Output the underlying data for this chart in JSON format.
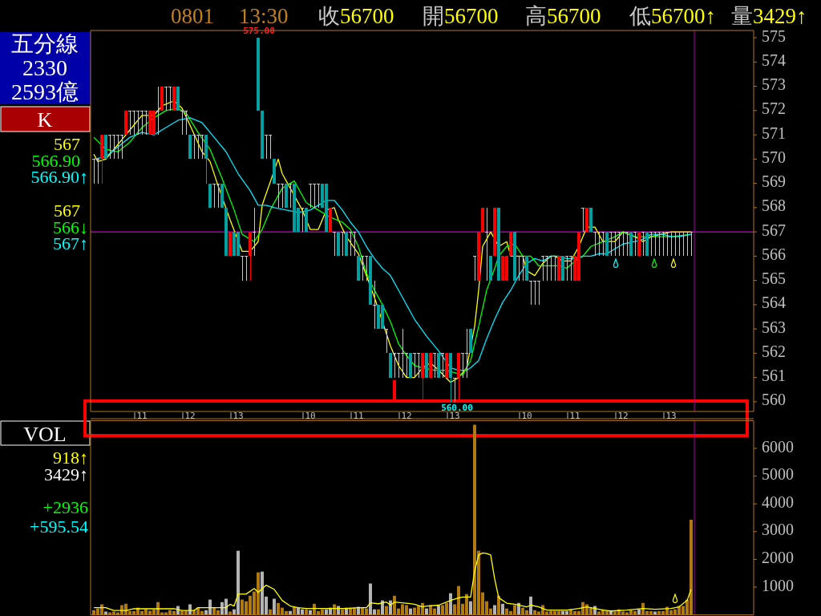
{
  "chart_data": [
    {
      "type": "candlestick",
      "categories": [
        null,
        null,
        null,
        null,
        null,
        null,
        null,
        null,
        null,
        null,
        null,
        null,
        "11",
        null,
        null,
        null,
        null,
        null,
        null,
        null,
        null,
        null,
        null,
        null,
        "12",
        null,
        null,
        null,
        null,
        null,
        null,
        null,
        null,
        null,
        null,
        null,
        "13",
        null,
        null,
        null,
        null,
        null,
        null,
        null,
        null,
        null,
        null,
        null,
        null,
        null,
        null,
        null,
        null,
        null,
        "10",
        null,
        null,
        null,
        null,
        null,
        null,
        null,
        null,
        null,
        null,
        null,
        "11",
        null,
        null,
        null,
        null,
        null,
        null,
        null,
        null,
        null,
        null,
        null,
        "12",
        null,
        null,
        null,
        null,
        null,
        null,
        null,
        null,
        null,
        null,
        null,
        "13",
        null,
        null,
        null,
        null,
        null,
        null,
        null,
        null,
        null,
        null,
        null,
        null,
        null,
        null,
        null,
        null,
        null,
        "10",
        null,
        null,
        null,
        null,
        null,
        null,
        null,
        null,
        null,
        null,
        null,
        "11",
        null,
        null,
        null,
        null,
        null,
        null,
        null,
        null,
        null,
        null,
        null,
        "12",
        null,
        null,
        null,
        null,
        null,
        null,
        null,
        null,
        null,
        null,
        null,
        "13",
        null,
        null,
        null,
        null,
        null
      ],
      "ohlc": [
        [
          570,
          570,
          569,
          570
        ],
        [
          570,
          570,
          569,
          570
        ],
        [
          570,
          571,
          569,
          571
        ],
        [
          571,
          571,
          570,
          570
        ],
        [
          571,
          571,
          570,
          571
        ],
        [
          571,
          571,
          570,
          571
        ],
        [
          571,
          571,
          570,
          571
        ],
        [
          571,
          571,
          570,
          571
        ],
        [
          571,
          572,
          571,
          572
        ],
        [
          572,
          572,
          571,
          572
        ],
        [
          572,
          572,
          571,
          572
        ],
        [
          572,
          572,
          571,
          572
        ],
        [
          572,
          572,
          571,
          572
        ],
        [
          572,
          572,
          571,
          572
        ],
        [
          571,
          572,
          571,
          572
        ],
        [
          571,
          572,
          571,
          572
        ],
        [
          572,
          573,
          571,
          572
        ],
        [
          572,
          573,
          572,
          573
        ],
        [
          573,
          573,
          572,
          573
        ],
        [
          573,
          573,
          572,
          573
        ],
        [
          572,
          573,
          572,
          573
        ],
        [
          573,
          573,
          572,
          572
        ],
        [
          572,
          572,
          571,
          572
        ],
        [
          572,
          572,
          571,
          572
        ],
        [
          571,
          571,
          570,
          570
        ],
        [
          571,
          571,
          570,
          571
        ],
        [
          571,
          571,
          570,
          571
        ],
        [
          571,
          571,
          570,
          571
        ],
        [
          571,
          571,
          569,
          570
        ],
        [
          569,
          569,
          568,
          568
        ],
        [
          569,
          569,
          568,
          569
        ],
        [
          569,
          569,
          568,
          569
        ],
        [
          569,
          569,
          568,
          568
        ],
        [
          568,
          568,
          566,
          566
        ],
        [
          566,
          567,
          566,
          567
        ],
        [
          567,
          567,
          566,
          566
        ],
        [
          567,
          567,
          566,
          566
        ],
        [
          566,
          566,
          565,
          566
        ],
        [
          566,
          566,
          565,
          566
        ],
        [
          566,
          567,
          565,
          567
        ],
        [
          567,
          568,
          566,
          567
        ],
        [
          575,
          575,
          572,
          572
        ],
        [
          572,
          572,
          570,
          570
        ],
        [
          571,
          571,
          570,
          571
        ],
        [
          571,
          571,
          570,
          571
        ],
        [
          570,
          570,
          569,
          569
        ],
        [
          569,
          569,
          568,
          569
        ],
        [
          569,
          569,
          568,
          569
        ],
        [
          569,
          569,
          568,
          568
        ],
        [
          569,
          569,
          568,
          569
        ],
        [
          569,
          569,
          567,
          567
        ],
        [
          568,
          568,
          567,
          567
        ],
        [
          568,
          568,
          567,
          568
        ],
        [
          568,
          568,
          567,
          567
        ],
        [
          569,
          569,
          568,
          569
        ],
        [
          569,
          569,
          568,
          569
        ],
        [
          569,
          569,
          568,
          569
        ],
        [
          569,
          569,
          568,
          568
        ],
        [
          569,
          569,
          567,
          567
        ],
        [
          567,
          568,
          567,
          568
        ],
        [
          567,
          567,
          566,
          567
        ],
        [
          567,
          567,
          566,
          566
        ],
        [
          567,
          567,
          566,
          567
        ],
        [
          567,
          567,
          566,
          566
        ],
        [
          567,
          567,
          566,
          567
        ],
        [
          567,
          567,
          566,
          567
        ],
        [
          566,
          566,
          565,
          565
        ],
        [
          566,
          566,
          565,
          566
        ],
        [
          566,
          566,
          565,
          566
        ],
        [
          566,
          566,
          564,
          564
        ],
        [
          564,
          565,
          563,
          564
        ],
        [
          564,
          564,
          563,
          563
        ],
        [
          564,
          564,
          563,
          563
        ],
        [
          563,
          563,
          562,
          563
        ],
        [
          562,
          562,
          561,
          561
        ],
        [
          562,
          562,
          561,
          562
        ],
        [
          562,
          562,
          561,
          562
        ],
        [
          562,
          563,
          561,
          562
        ],
        [
          562,
          562,
          561,
          562
        ],
        [
          562,
          562,
          561,
          561
        ],
        [
          562,
          562,
          561,
          562
        ],
        [
          562,
          562,
          561,
          562
        ],
        [
          561,
          562,
          560,
          562
        ],
        [
          562,
          562,
          561,
          561
        ],
        [
          561,
          562,
          561,
          562
        ],
        [
          562,
          562,
          561,
          562
        ],
        [
          562,
          562,
          561,
          561
        ],
        [
          562,
          562,
          561,
          562
        ],
        [
          561,
          562,
          561,
          562
        ],
        [
          562,
          562,
          560,
          561
        ],
        [
          561,
          561,
          560,
          561
        ],
        [
          561,
          562,
          560,
          562
        ],
        [
          562,
          562,
          561,
          562
        ],
        [
          562,
          563,
          561,
          562
        ],
        [
          563,
          563,
          562,
          562
        ],
        [
          566,
          566,
          565,
          566
        ],
        [
          565,
          567,
          565,
          567
        ],
        [
          567,
          568,
          567,
          568
        ],
        [
          567,
          568,
          565,
          567
        ],
        [
          566,
          566,
          565,
          565
        ],
        [
          566,
          568,
          566,
          568
        ],
        [
          568,
          568,
          565,
          565
        ],
        [
          565,
          566,
          565,
          566
        ],
        [
          565,
          566,
          565,
          566
        ],
        [
          566,
          567,
          566,
          567
        ],
        [
          567,
          567,
          565,
          565
        ],
        [
          566,
          566,
          565,
          566
        ],
        [
          566,
          566,
          565,
          566
        ],
        [
          566,
          566,
          565,
          565
        ],
        [
          565,
          565,
          564,
          565
        ],
        [
          565,
          565,
          564,
          565
        ],
        [
          565,
          565,
          564,
          565
        ],
        [
          566,
          566,
          565,
          566
        ],
        [
          566,
          566,
          565,
          566
        ],
        [
          566,
          566,
          565,
          566
        ],
        [
          566,
          566,
          565,
          566
        ],
        [
          565,
          566,
          565,
          566
        ],
        [
          566,
          566,
          565,
          565
        ],
        [
          566,
          566,
          565,
          566
        ],
        [
          566,
          566,
          565,
          566
        ],
        [
          565,
          566,
          565,
          566
        ],
        [
          565,
          567,
          565,
          567
        ],
        [
          568,
          568,
          567,
          568
        ],
        [
          567,
          568,
          567,
          568
        ],
        [
          568,
          568,
          567,
          567
        ],
        [
          567,
          567,
          566,
          567
        ],
        [
          567,
          567,
          566,
          567
        ],
        [
          567,
          567,
          566,
          567
        ],
        [
          567,
          567,
          566,
          566
        ],
        [
          567,
          567,
          566,
          567
        ],
        [
          567,
          567,
          566,
          567
        ],
        [
          567,
          567,
          566,
          567
        ],
        [
          567,
          567,
          566,
          567
        ],
        [
          567,
          567,
          566,
          567
        ],
        [
          567,
          567,
          566,
          566
        ],
        [
          567,
          567,
          566,
          567
        ],
        [
          566,
          567,
          566,
          567
        ],
        [
          567,
          567,
          566,
          567
        ],
        [
          567,
          567,
          566,
          566
        ],
        [
          567,
          567,
          566,
          567
        ],
        [
          567,
          567,
          566,
          567
        ],
        [
          567,
          567,
          566,
          567
        ],
        [
          567,
          567,
          566,
          567
        ],
        [
          567,
          567,
          566,
          567
        ],
        [
          567,
          567,
          566,
          567
        ],
        [
          567,
          567,
          566,
          567
        ],
        [
          567,
          567,
          566,
          567
        ],
        [
          567,
          567,
          566,
          567
        ],
        [
          567,
          567,
          566,
          567
        ],
        [
          567,
          567,
          566,
          567
        ]
      ],
      "colors": [
        "#c8c8c8",
        "#c8c8c8",
        "#ff0000",
        "#00a0a0",
        "#c8c8c8",
        "#c8c8c8",
        "#c8c8c8",
        "#c8c8c8",
        "#ff0000",
        "#c8c8c8",
        "#c8c8c8",
        "#c8c8c8",
        "#c8c8c8",
        "#c8c8c8",
        "#ff0000",
        "#ff0000",
        "#c8c8c8",
        "#ff0000",
        "#c8c8c8",
        "#c8c8c8",
        "#ff0000",
        "#00a0a0",
        "#c8c8c8",
        "#c8c8c8",
        "#00a0a0",
        "#c8c8c8",
        "#c8c8c8",
        "#c8c8c8",
        "#00a0a0",
        "#00a0a0",
        "#c8c8c8",
        "#c8c8c8",
        "#00a0a0",
        "#00a0a0",
        "#ff0000",
        "#00a0a0",
        "#00a0a0",
        "#c8c8c8",
        "#c8c8c8",
        "#ff0000",
        "#c8c8c8",
        "#00a0a0",
        "#00a0a0",
        "#c8c8c8",
        "#c8c8c8",
        "#00a0a0",
        "#c8c8c8",
        "#c8c8c8",
        "#00a0a0",
        "#c8c8c8",
        "#00a0a0",
        "#00a0a0",
        "#c8c8c8",
        "#00a0a0",
        "#c8c8c8",
        "#c8c8c8",
        "#c8c8c8",
        "#00a0a0",
        "#00a0a0",
        "#ff0000",
        "#c8c8c8",
        "#00a0a0",
        "#c8c8c8",
        "#00a0a0",
        "#c8c8c8",
        "#c8c8c8",
        "#00a0a0",
        "#c8c8c8",
        "#c8c8c8",
        "#00a0a0",
        "#c8c8c8",
        "#00a0a0",
        "#00a0a0",
        "#c8c8c8",
        "#00a0a0",
        "#c8c8c8",
        "#c8c8c8",
        "#c8c8c8",
        "#c8c8c8",
        "#00a0a0",
        "#c8c8c8",
        "#c8c8c8",
        "#ff0000",
        "#00a0a0",
        "#ff0000",
        "#c8c8c8",
        "#00a0a0",
        "#c8c8c8",
        "#ff0000",
        "#00a0a0",
        "#c8c8c8",
        "#ff0000",
        "#c8c8c8",
        "#c8c8c8",
        "#00a0a0",
        "#c8c8c8",
        "#ff0000",
        "#ff0000",
        "#c8c8c8",
        "#00a0a0",
        "#ff0000",
        "#00a0a0",
        "#ff0000",
        "#ff0000",
        "#ff0000",
        "#00a0a0",
        "#c8c8c8",
        "#c8c8c8",
        "#00a0a0",
        "#c8c8c8",
        "#c8c8c8",
        "#c8c8c8",
        "#c8c8c8",
        "#c8c8c8",
        "#c8c8c8",
        "#c8c8c8",
        "#ff0000",
        "#00a0a0",
        "#c8c8c8",
        "#c8c8c8",
        "#ff0000",
        "#ff0000",
        "#c8c8c8",
        "#ff0000",
        "#00a0a0",
        "#c8c8c8",
        "#c8c8c8",
        "#c8c8c8",
        "#00a0a0",
        "#c8c8c8",
        "#c8c8c8",
        "#c8c8c8",
        "#c8c8c8",
        "#c8c8c8",
        "#00a0a0",
        "#c8c8c8",
        "#ff0000",
        "#c8c8c8",
        "#00a0a0",
        "#c8c8c8",
        "#c8c8c8",
        "#c8c8c8",
        "#c8c8c8",
        "#c8c8c8",
        "#c8c8c8",
        "#c8c8c8",
        "#c8c8c8",
        "#c8c8c8",
        "#c8c8c8",
        "#c8c8c8"
      ],
      "series": [
        {
          "type": "line",
          "color": "#ffff00",
          "values": [
            570.2,
            569.9,
            null,
            570.0,
            null,
            570.4,
            null,
            570.8,
            null,
            null,
            571.4,
            null,
            571.8,
            null,
            null,
            571.8,
            null,
            572.2,
            null,
            null,
            572.4,
            null,
            572.1,
            null,
            571.4,
            null,
            null,
            570.3,
            null,
            569.9,
            null,
            568.9,
            null,
            null,
            567.5,
            null,
            null,
            566.2,
            null,
            566.2,
            null,
            566.6,
            568.1,
            null,
            null,
            null,
            570.0,
            569.4,
            null,
            568.8,
            null,
            null,
            567.9,
            null,
            567.1,
            null,
            567.1,
            null,
            567.9,
            null,
            568.0,
            567.5,
            null,
            566.8,
            null,
            null,
            566.1,
            null,
            null,
            null,
            564.3,
            null,
            null,
            null,
            562.3,
            null,
            561.5,
            null,
            561.0,
            null,
            561.0,
            null,
            561.4,
            null,
            561.6,
            null,
            561.3,
            null,
            null,
            560.8,
            null,
            561.0,
            null,
            561.4,
            null,
            563.1,
            564.6,
            566.4,
            null,
            567.0,
            null,
            566.4,
            null,
            566.6,
            566.0,
            null,
            null,
            566.0,
            565.4,
            null,
            565.2,
            null,
            565.7,
            null,
            566.0,
            566.0,
            null,
            565.8,
            null,
            565.8,
            null,
            566.4,
            null,
            567.2,
            null,
            567.2,
            null,
            566.6,
            null,
            null,
            566.6,
            null,
            567.0,
            null,
            null,
            566.8,
            null,
            566.6,
            null,
            566.8,
            null,
            null,
            null,
            null,
            567.0,
            null,
            null,
            null,
            null,
            567.0
          ]
        },
        {
          "type": "line",
          "color": "#00ff00",
          "values": [
            570.9,
            null,
            null,
            570.4,
            null,
            null,
            570.3,
            null,
            null,
            570.7,
            null,
            null,
            571.3,
            null,
            null,
            571.7,
            null,
            null,
            572.0,
            null,
            null,
            572.1,
            null,
            571.9,
            null,
            null,
            571.1,
            null,
            null,
            570.4,
            null,
            null,
            569.2,
            null,
            null,
            567.9,
            null,
            566.9,
            null,
            null,
            566.6,
            null,
            567.1,
            null,
            567.9,
            null,
            null,
            568.8,
            null,
            null,
            569.1,
            null,
            null,
            568.2,
            null,
            null,
            567.9,
            null,
            null,
            567.6,
            null,
            null,
            567.4,
            null,
            567.1,
            null,
            566.4,
            null,
            565.3,
            null,
            564.6,
            null,
            564.0,
            null,
            563.3,
            null,
            562.4,
            null,
            561.9,
            null,
            561.5,
            null,
            561.4,
            null,
            null,
            561.3,
            null,
            null,
            561.3,
            null,
            561.2,
            null,
            561.1,
            null,
            561.7,
            null,
            563.1,
            null,
            564.6,
            null,
            565.5,
            566.0,
            null,
            566.4,
            null,
            566.5,
            null,
            566.0,
            null,
            566.0,
            null,
            565.6,
            null,
            565.6,
            null,
            null,
            565.6,
            null,
            565.5,
            null,
            565.8,
            null,
            566.0,
            null,
            566.4,
            null,
            null,
            566.6,
            null,
            null,
            566.8,
            null,
            567.0,
            null,
            null,
            566.8,
            null,
            null,
            566.8,
            null,
            null,
            566.8,
            null,
            null,
            566.8,
            null,
            null,
            null,
            null,
            566.9
          ]
        },
        {
          "type": "line",
          "color": "#00e8ff",
          "values": [
            570.0,
            null,
            null,
            570.1,
            null,
            null,
            570.5,
            null,
            null,
            570.9,
            null,
            null,
            571.1,
            null,
            null,
            571.0,
            null,
            null,
            571.3,
            null,
            null,
            571.6,
            null,
            null,
            571.7,
            null,
            null,
            571.5,
            null,
            null,
            570.9,
            null,
            null,
            570.3,
            null,
            null,
            569.4,
            null,
            null,
            568.7,
            null,
            568.1,
            null,
            568.1,
            null,
            568.0,
            null,
            null,
            567.9,
            null,
            null,
            567.8,
            null,
            null,
            567.9,
            null,
            568.1,
            null,
            568.3,
            null,
            568.3,
            null,
            567.9,
            null,
            567.4,
            null,
            567.0,
            null,
            566.4,
            null,
            565.9,
            null,
            565.5,
            null,
            565.2,
            null,
            null,
            564.3,
            null,
            null,
            563.4,
            null,
            null,
            562.7,
            null,
            null,
            562.1,
            null,
            null,
            561.4,
            null,
            561.3,
            null,
            561.3,
            561.4,
            null,
            561.7,
            null,
            562.6,
            null,
            563.4,
            null,
            564.1,
            null,
            564.6,
            null,
            565.2,
            null,
            565.7,
            null,
            565.9,
            null,
            565.8,
            null,
            566.0,
            null,
            566.0,
            null,
            565.9,
            null,
            565.9,
            null,
            566.0,
            null,
            566.0,
            null,
            566.1,
            null,
            566.1,
            null,
            566.3,
            null,
            566.5,
            null,
            null,
            566.6,
            null,
            566.7,
            null,
            566.9,
            null,
            null,
            566.9,
            null,
            566.8,
            null,
            566.8,
            null,
            null,
            566.9
          ]
        }
      ],
      "ylim": [
        559.6,
        575.3
      ],
      "yticks": [
        560,
        561,
        562,
        563,
        564,
        565,
        566,
        567,
        568,
        569,
        570,
        571,
        572,
        573,
        574,
        575
      ],
      "ref_lines": [
        {
          "axis": "y",
          "value": 567,
          "color": "#ff00ff"
        }
      ],
      "annotations": [
        "0801",
        "13:30",
        "收56700",
        "開56700",
        "高56700",
        "低56700↑",
        "量3429↑",
        "五分線",
        "2330",
        "2593億",
        "K",
        "567",
        "566.90",
        "566.90↑",
        "567",
        "566↓",
        "567↑",
        "575.00",
        "560.00"
      ]
    },
    {
      "type": "bar",
      "categories": [
        null,
        null,
        null,
        null,
        null,
        null,
        null,
        null,
        null,
        null,
        null,
        null,
        null,
        null,
        null,
        null,
        null,
        null,
        null,
        null,
        null,
        null,
        null,
        null,
        null,
        null,
        null,
        null,
        null,
        null,
        null,
        null,
        null,
        null,
        null,
        null,
        null,
        null,
        null,
        null,
        null,
        null,
        null,
        null,
        null,
        null,
        null,
        null,
        null,
        null,
        null,
        null,
        null,
        null,
        null,
        null,
        null,
        null,
        null,
        null,
        null,
        null,
        null,
        null,
        null,
        null,
        null,
        null,
        null,
        null,
        null,
        null,
        null,
        null,
        null,
        null,
        null,
        null,
        null,
        null,
        null,
        null,
        null,
        null,
        null,
        null,
        null,
        null,
        null,
        null,
        null,
        null,
        null,
        null,
        null,
        null,
        null,
        null,
        null,
        null,
        null,
        null,
        null,
        null,
        null,
        null,
        null,
        null,
        null,
        null,
        null,
        null,
        null,
        null,
        null,
        null,
        null,
        null,
        null,
        null,
        null,
        null,
        null,
        null,
        null,
        null,
        null,
        null,
        null,
        null,
        null,
        null,
        null,
        null,
        null,
        null,
        null,
        null,
        null,
        null,
        null,
        null,
        null,
        null,
        null,
        null,
        null,
        null,
        null,
        null
      ],
      "series": [
        {
          "type": "bar",
          "values": [
            170,
            230,
            380,
            120,
            90,
            120,
            90,
            350,
            400,
            140,
            140,
            260,
            140,
            200,
            150,
            190,
            460,
            90,
            90,
            170,
            140,
            320,
            140,
            140,
            380,
            170,
            260,
            140,
            170,
            550,
            260,
            170,
            460,
            580,
            120,
            200,
            2310,
            550,
            490,
            690,
            840,
            1530,
            1560,
            660,
            200,
            580,
            430,
            260,
            140,
            140,
            290,
            260,
            200,
            200,
            170,
            400,
            140,
            200,
            200,
            260,
            380,
            320,
            200,
            260,
            260,
            260,
            290,
            260,
            230,
            1130,
            200,
            200,
            520,
            320,
            520,
            690,
            230,
            380,
            350,
            230,
            260,
            320,
            430,
            230,
            350,
            230,
            350,
            350,
            430,
            780,
            380,
            1040,
            400,
            750,
            490,
            6850,
            2310,
            810,
            490,
            230,
            350,
            690,
            400,
            230,
            140,
            350,
            430,
            260,
            170,
            660,
            170,
            120,
            350,
            120,
            140,
            140,
            140,
            140,
            140,
            200,
            140,
            140,
            460,
            380,
            260,
            320,
            120,
            200,
            140,
            140,
            120,
            200,
            120,
            90,
            170,
            140,
            200,
            430,
            140,
            140,
            120,
            140,
            140,
            290,
            170,
            200,
            320,
            320,
            550,
            3429
          ],
          "colors": [
            "#b07a10",
            "#b07a10",
            "#b07a10",
            "#b4b4b4",
            "#b07a10",
            "#b07a10",
            "#b07a10",
            "#b07a10",
            "#b07a10",
            "#b07a10",
            "#b07a10",
            "#b07a10",
            "#b07a10",
            "#b07a10",
            "#b07a10",
            "#b07a10",
            "#b07a10",
            "#b07a10",
            "#b07a10",
            "#b07a10",
            "#b07a10",
            "#b4b4b4",
            "#b07a10",
            "#b07a10",
            "#b4b4b4",
            "#b07a10",
            "#b07a10",
            "#b07a10",
            "#b4b4b4",
            "#b4b4b4",
            "#b07a10",
            "#b07a10",
            "#b4b4b4",
            "#b4b4b4",
            "#b07a10",
            "#b4b4b4",
            "#b4b4b4",
            "#b07a10",
            "#b07a10",
            "#b07a10",
            "#b07a10",
            "#b07a10",
            "#b4b4b4",
            "#b4b4b4",
            "#b07a10",
            "#b4b4b4",
            "#b07a10",
            "#b07a10",
            "#b07a10",
            "#b4b4b4",
            "#b07a10",
            "#b4b4b4",
            "#b4b4b4",
            "#b07a10",
            "#b4b4b4",
            "#b07a10",
            "#b07a10",
            "#b07a10",
            "#b4b4b4",
            "#b4b4b4",
            "#b07a10",
            "#b4b4b4",
            "#b07a10",
            "#b4b4b4",
            "#b07a10",
            "#b07a10",
            "#b4b4b4",
            "#b07a10",
            "#b07a10",
            "#b4b4b4",
            "#b4b4b4",
            "#b07a10",
            "#b4b4b4",
            "#b07a10",
            "#b4b4b4",
            "#b07a10",
            "#b07a10",
            "#b07a10",
            "#b07a10",
            "#b4b4b4",
            "#b07a10",
            "#b07a10",
            "#b07a10",
            "#b4b4b4",
            "#b07a10",
            "#b07a10",
            "#b4b4b4",
            "#b07a10",
            "#b07a10",
            "#b4b4b4",
            "#b07a10",
            "#b07a10",
            "#b07a10",
            "#b07a10",
            "#b4b4b4",
            "#b07a10",
            "#b07a10",
            "#b07a10",
            "#b07a10",
            "#b07a10",
            "#b4b4b4",
            "#b07a10",
            "#b4b4b4",
            "#b07a10",
            "#b07a10",
            "#b07a10",
            "#b4b4b4",
            "#b07a10",
            "#b07a10",
            "#b4b4b4",
            "#b07a10",
            "#b07a10",
            "#b07a10",
            "#b07a10",
            "#b07a10",
            "#b07a10",
            "#b07a10",
            "#b4b4b4",
            "#b4b4b4",
            "#b07a10",
            "#b07a10",
            "#b07a10",
            "#b07a10",
            "#b07a10",
            "#b07a10",
            "#b4b4b4",
            "#b07a10",
            "#b07a10",
            "#b07a10",
            "#b4b4b4",
            "#b07a10",
            "#b07a10",
            "#b07a10",
            "#b07a10",
            "#b07a10",
            "#b07a10",
            "#b4b4b4",
            "#b07a10",
            "#b07a10",
            "#b07a10",
            "#b4b4b4",
            "#b07a10",
            "#b07a10",
            "#b07a10",
            "#b07a10",
            "#b07a10",
            "#b07a10",
            "#b07a10",
            "#b07a10",
            "#b07a10"
          ]
        },
        {
          "type": "line",
          "color": "#ffff00",
          "values": [
            260,
            null,
            null,
            260,
            null,
            160,
            null,
            null,
            160,
            null,
            220,
            null,
            null,
            null,
            null,
            null,
            null,
            null,
            null,
            null,
            220,
            null,
            160,
            null,
            null,
            160,
            260,
            null,
            null,
            null,
            null,
            null,
            null,
            260,
            380,
            320,
            750,
            null,
            750,
            null,
            950,
            810,
            null,
            1070,
            null,
            920,
            null,
            520,
            null,
            320,
            null,
            260,
            null,
            230,
            null,
            null,
            null,
            null,
            null,
            null,
            null,
            null,
            null,
            230,
            null,
            null,
            260,
            null,
            260,
            430,
            null,
            400,
            null,
            460,
            350,
            460,
            null,
            null,
            420,
            null,
            380,
            null,
            290,
            320,
            null,
            null,
            350,
            null,
            null,
            520,
            null,
            610,
            640,
            null,
            640,
            1580,
            2160,
            2230,
            2210,
            2160,
            1290,
            620,
            null,
            420,
            null,
            380,
            null,
            null,
            290,
            350,
            null,
            290,
            null,
            170,
            null,
            null,
            null,
            null,
            170,
            null,
            null,
            230,
            null,
            290,
            null,
            230,
            null,
            170,
            null,
            140,
            null,
            null,
            null,
            170,
            null,
            null,
            null,
            230,
            null,
            null,
            200,
            null,
            null,
            null,
            230,
            null,
            290,
            null,
            520,
            918
          ]
        }
      ],
      "ylim": [
        0,
        7000
      ],
      "yticks": [
        1000,
        2000,
        3000,
        4000,
        5000,
        6000
      ],
      "tick_labels": "y",
      "annotations": [
        "VOL",
        "918↑",
        "3429↑",
        "+2936",
        "+595.54"
      ]
    }
  ]
}
